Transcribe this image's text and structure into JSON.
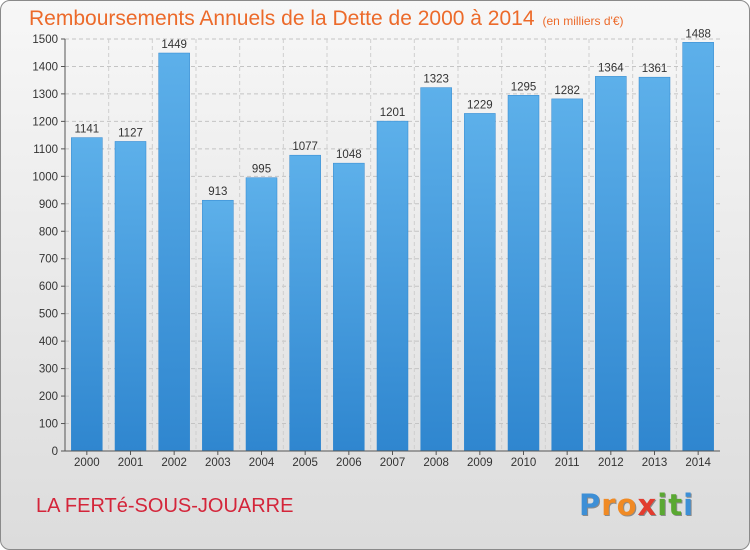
{
  "title": "Remboursements Annuels de la Dette de 2000 à 2014",
  "unit_note": "(en milliers d'€)",
  "commune": "LA FERTé-SOUS-JOUARRE",
  "logo": {
    "letters": [
      "P",
      "r",
      "o",
      "x",
      "i",
      "t",
      "i"
    ],
    "colors": [
      "#3d8fd6",
      "#f08a24",
      "#f08a24",
      "#e23c2f",
      "#5aa832",
      "#5aa832",
      "#3d8fd6"
    ]
  },
  "colors": {
    "bar": "#3f9be0",
    "title": "#ec6a2a",
    "commune": "#d4253a"
  },
  "chart_data": {
    "type": "bar",
    "categories": [
      "2000",
      "2001",
      "2002",
      "2003",
      "2004",
      "2005",
      "2006",
      "2007",
      "2008",
      "2009",
      "2010",
      "2011",
      "2012",
      "2013",
      "2014"
    ],
    "values": [
      1141,
      1127,
      1449,
      913,
      995,
      1077,
      1048,
      1201,
      1323,
      1229,
      1295,
      1282,
      1364,
      1361,
      1488
    ],
    "yticks": [
      0,
      100,
      200,
      300,
      400,
      500,
      600,
      700,
      800,
      900,
      1000,
      1100,
      1200,
      1300,
      1400,
      1500
    ],
    "ylim": [
      0,
      1500
    ],
    "grid": true,
    "legend": "none"
  }
}
